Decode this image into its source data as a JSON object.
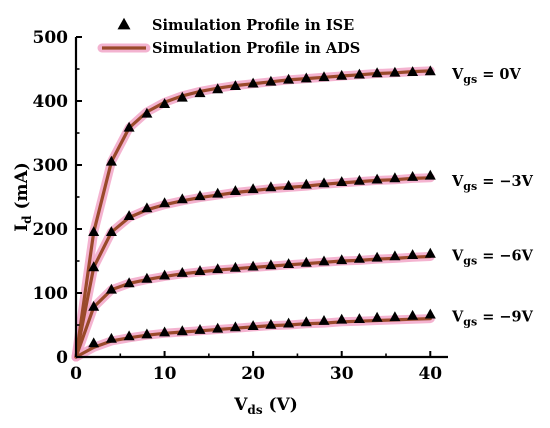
{
  "chart_data": {
    "type": "line",
    "title": "",
    "xlabel": {
      "main": "V",
      "sub": "ds",
      "unit": " (V)"
    },
    "ylabel": {
      "main": "I",
      "sub": "d",
      "unit": " (mA)"
    },
    "xlim": [
      0,
      42
    ],
    "ylim": [
      0,
      500
    ],
    "xticks": [
      "0",
      "10",
      "20",
      "30",
      "40"
    ],
    "xtick_values": [
      0,
      10,
      20,
      30,
      40
    ],
    "yticks": [
      "0",
      "100",
      "200",
      "300",
      "400",
      "500"
    ],
    "ytick_values": [
      0,
      100,
      200,
      300,
      400,
      500
    ],
    "grid": false,
    "legend_position": "top-left",
    "legend": [
      {
        "label": "Simulation Profile in ISE",
        "marker": "triangle"
      },
      {
        "label": "Simulation Profile in ADS",
        "marker": "line"
      }
    ],
    "colors": {
      "ads_line": "#9a4a2b",
      "ads_glow": "#f2a6c8",
      "ise_marker": "#000000"
    },
    "x": [
      0,
      2,
      4,
      6,
      8,
      10,
      12,
      14,
      16,
      18,
      20,
      22,
      24,
      26,
      28,
      30,
      32,
      34,
      36,
      38,
      40
    ],
    "series": [
      {
        "label_main": "V",
        "label_sub": "gs",
        "label_value": " = 0V",
        "ads": [
          0,
          195,
          305,
          358,
          383,
          398,
          408,
          415,
          420,
          424,
          427,
          430,
          433,
          435,
          437,
          439,
          441,
          443,
          444,
          446,
          447
        ],
        "ise": [
          0,
          195,
          305,
          358,
          380,
          395,
          405,
          412,
          418,
          423,
          427,
          430,
          433,
          435,
          437,
          439,
          441,
          443,
          444,
          445,
          446
        ]
      },
      {
        "label_main": "V",
        "label_sub": "gs",
        "label_value": " = −3V",
        "ads": [
          0,
          140,
          195,
          218,
          230,
          238,
          244,
          249,
          253,
          257,
          260,
          263,
          265,
          267,
          270,
          272,
          274,
          276,
          277,
          279,
          280
        ],
        "ise": [
          0,
          140,
          195,
          220,
          232,
          240,
          246,
          251,
          255,
          259,
          262,
          265,
          267,
          269,
          271,
          273,
          275,
          277,
          279,
          281,
          283
        ]
      },
      {
        "label_main": "V",
        "label_sub": "gs",
        "label_value": " = −6V",
        "ads": [
          0,
          78,
          105,
          115,
          121,
          126,
          130,
          133,
          136,
          138,
          140,
          142,
          144,
          146,
          148,
          150,
          151,
          153,
          154,
          156,
          157
        ],
        "ise": [
          0,
          78,
          105,
          115,
          122,
          127,
          131,
          134,
          137,
          139,
          141,
          143,
          145,
          147,
          149,
          151,
          153,
          155,
          157,
          159,
          161
        ]
      },
      {
        "label_main": "V",
        "label_sub": "gs",
        "label_value": " = −9V",
        "ads": [
          0,
          15,
          25,
          30,
          34,
          37,
          39,
          41,
          43,
          45,
          47,
          49,
          50,
          52,
          53,
          55,
          56,
          57,
          58,
          59,
          60
        ],
        "ise": [
          0,
          21,
          28,
          32,
          35,
          38,
          40,
          42,
          44,
          46,
          48,
          50,
          52,
          54,
          56,
          58,
          59,
          61,
          62,
          64,
          66
        ]
      }
    ]
  }
}
